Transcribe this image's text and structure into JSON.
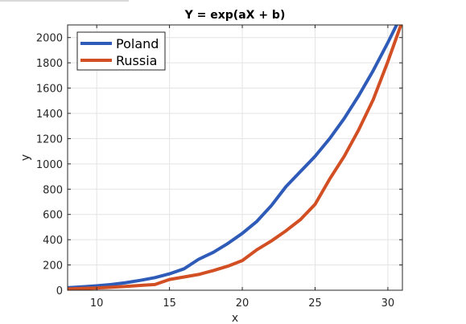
{
  "chart_data": {
    "type": "line",
    "title": "Y = exp(aX + b)",
    "xlabel": "x",
    "ylabel": "y",
    "xlim": [
      8,
      31
    ],
    "ylim": [
      0,
      2100
    ],
    "xticks": [
      10,
      15,
      20,
      25,
      30
    ],
    "yticks": [
      0,
      200,
      400,
      600,
      800,
      1000,
      1200,
      1400,
      1600,
      1800,
      2000
    ],
    "grid": true,
    "legend_position": "top-left",
    "series": [
      {
        "name": "Poland",
        "color": "#2e5bb8",
        "x": [
          8,
          9,
          10,
          11,
          12,
          13,
          14,
          15,
          16,
          17,
          18,
          19,
          20,
          21,
          22,
          23,
          24,
          25,
          26,
          27,
          28,
          29,
          30,
          30.6
        ],
        "y": [
          20,
          27,
          35,
          45,
          60,
          78,
          100,
          130,
          170,
          245,
          300,
          370,
          450,
          545,
          670,
          820,
          940,
          1060,
          1200,
          1360,
          1540,
          1740,
          1960,
          2100
        ]
      },
      {
        "name": "Russia",
        "color": "#d24f24",
        "x": [
          8,
          9,
          10,
          11,
          12,
          13,
          14,
          15,
          16,
          17,
          18,
          19,
          20,
          21,
          22,
          23,
          24,
          25,
          26,
          27,
          28,
          29,
          30,
          30.9
        ],
        "y": [
          10,
          14,
          18,
          24,
          30,
          38,
          45,
          85,
          105,
          125,
          155,
          190,
          235,
          320,
          390,
          470,
          560,
          680,
          880,
          1060,
          1270,
          1510,
          1810,
          2100
        ]
      }
    ]
  }
}
